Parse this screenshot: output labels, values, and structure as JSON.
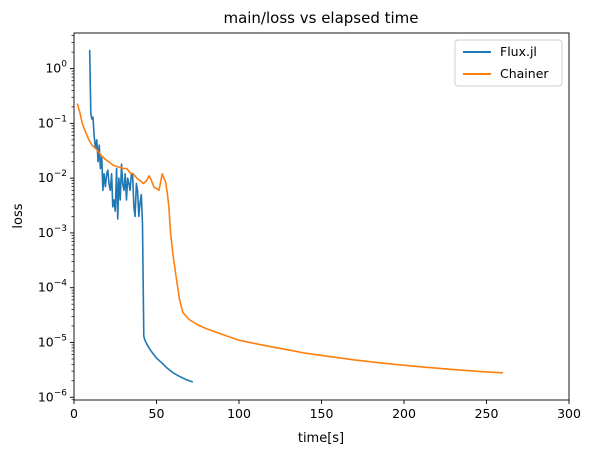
{
  "chart_data": {
    "type": "line",
    "title": "main/loss vs elapsed time",
    "xlabel": "time[s]",
    "ylabel": "loss",
    "xlim": [
      0,
      300
    ],
    "ylim_log10": [
      -6.05,
      0.65
    ],
    "yscale": "log",
    "grid": false,
    "legend_position": "top-right",
    "x_ticks": [
      {
        "value": 0,
        "label": "0"
      },
      {
        "value": 50,
        "label": "50"
      },
      {
        "value": 100,
        "label": "100"
      },
      {
        "value": 150,
        "label": "150"
      },
      {
        "value": 200,
        "label": "200"
      },
      {
        "value": 250,
        "label": "250"
      },
      {
        "value": 300,
        "label": "300"
      }
    ],
    "y_ticks": [
      {
        "exp": 0,
        "base": "10",
        "sup": "0"
      },
      {
        "exp": -1,
        "base": "10",
        "sup": "−1"
      },
      {
        "exp": -2,
        "base": "10",
        "sup": "−2"
      },
      {
        "exp": -3,
        "base": "10",
        "sup": "−3"
      },
      {
        "exp": -4,
        "base": "10",
        "sup": "−4"
      },
      {
        "exp": -5,
        "base": "10",
        "sup": "−5"
      },
      {
        "exp": -6,
        "base": "10",
        "sup": "−6"
      }
    ],
    "series": [
      {
        "name": "Flux.jl",
        "color": "#1f77b4",
        "points": [
          [
            9.5,
            2.2
          ],
          [
            10.2,
            0.15
          ],
          [
            10.8,
            0.12
          ],
          [
            11.5,
            0.13
          ],
          [
            12.2,
            0.06
          ],
          [
            13.0,
            0.035
          ],
          [
            13.8,
            0.05
          ],
          [
            14.6,
            0.02
          ],
          [
            15.3,
            0.04
          ],
          [
            16.0,
            0.015
          ],
          [
            16.8,
            0.025
          ],
          [
            17.5,
            0.006
          ],
          [
            18.2,
            0.012
          ],
          [
            19.0,
            0.007
          ],
          [
            19.8,
            0.012
          ],
          [
            20.5,
            0.014
          ],
          [
            21.2,
            0.008
          ],
          [
            22.0,
            0.006
          ],
          [
            22.8,
            0.012
          ],
          [
            23.5,
            0.003
          ],
          [
            24.2,
            0.004
          ],
          [
            25.0,
            0.0025
          ],
          [
            25.8,
            0.015
          ],
          [
            26.5,
            0.0018
          ],
          [
            27.2,
            0.01
          ],
          [
            28.0,
            0.004
          ],
          [
            28.8,
            0.018
          ],
          [
            29.5,
            0.008
          ],
          [
            30.3,
            0.006
          ],
          [
            31.0,
            0.012
          ],
          [
            31.8,
            0.004
          ],
          [
            32.5,
            0.01
          ],
          [
            33.3,
            0.008
          ],
          [
            34.0,
            0.006
          ],
          [
            34.8,
            0.012
          ],
          [
            35.5,
            0.012
          ],
          [
            36.3,
            0.003
          ],
          [
            37.0,
            0.002
          ],
          [
            37.8,
            0.008
          ],
          [
            38.5,
            0.006
          ],
          [
            39.3,
            0.002
          ],
          [
            40.0,
            0.0035
          ],
          [
            40.8,
            0.005
          ],
          [
            41.5,
            0.0015
          ],
          [
            42.3,
            1.3e-05
          ],
          [
            43.0,
            1.1e-05
          ],
          [
            44.0,
            9.5e-06
          ],
          [
            46.0,
            7.5e-06
          ],
          [
            48.0,
            6.2e-06
          ],
          [
            50.0,
            5.2e-06
          ],
          [
            53.0,
            4.3e-06
          ],
          [
            56.0,
            3.5e-06
          ],
          [
            60.0,
            2.8e-06
          ],
          [
            64.0,
            2.4e-06
          ],
          [
            68.0,
            2.1e-06
          ],
          [
            72.0,
            1.9e-06
          ]
        ]
      },
      {
        "name": "Chainer",
        "color": "#ff7f0e",
        "points": [
          [
            2.0,
            0.23
          ],
          [
            3.5,
            0.16
          ],
          [
            5.0,
            0.1
          ],
          [
            7.0,
            0.07
          ],
          [
            9.0,
            0.05
          ],
          [
            11.0,
            0.04
          ],
          [
            13.0,
            0.035
          ],
          [
            15.0,
            0.03
          ],
          [
            17.0,
            0.025
          ],
          [
            19.0,
            0.022
          ],
          [
            21.0,
            0.02
          ],
          [
            24.0,
            0.017
          ],
          [
            27.0,
            0.016
          ],
          [
            30.0,
            0.015
          ],
          [
            32.0,
            0.015
          ],
          [
            34.0,
            0.0125
          ],
          [
            36.0,
            0.012
          ],
          [
            38.0,
            0.01
          ],
          [
            40.0,
            0.009
          ],
          [
            42.0,
            0.008
          ],
          [
            44.0,
            0.009
          ],
          [
            45.5,
            0.011
          ],
          [
            47.0,
            0.009
          ],
          [
            48.5,
            0.0068
          ],
          [
            50.0,
            0.0065
          ],
          [
            51.5,
            0.006
          ],
          [
            52.5,
            0.0085
          ],
          [
            53.5,
            0.012
          ],
          [
            54.5,
            0.01
          ],
          [
            55.5,
            0.0085
          ],
          [
            56.5,
            0.0055
          ],
          [
            57.5,
            0.003
          ],
          [
            58.5,
            0.001
          ],
          [
            60.0,
            0.0004
          ],
          [
            62.0,
            0.00015
          ],
          [
            64.0,
            6e-05
          ],
          [
            66.0,
            3.5e-05
          ],
          [
            70.0,
            2.6e-05
          ],
          [
            75.0,
            2.1e-05
          ],
          [
            80.0,
            1.8e-05
          ],
          [
            90.0,
            1.4e-05
          ],
          [
            100.0,
            1.1e-05
          ],
          [
            110.0,
            9.5e-06
          ],
          [
            120.0,
            8.3e-06
          ],
          [
            130.0,
            7.3e-06
          ],
          [
            140.0,
            6.4e-06
          ],
          [
            150.0,
            5.8e-06
          ],
          [
            170.0,
            4.8e-06
          ],
          [
            190.0,
            4.1e-06
          ],
          [
            210.0,
            3.6e-06
          ],
          [
            230.0,
            3.2e-06
          ],
          [
            250.0,
            2.9e-06
          ],
          [
            260.0,
            2.8e-06
          ]
        ]
      }
    ]
  }
}
